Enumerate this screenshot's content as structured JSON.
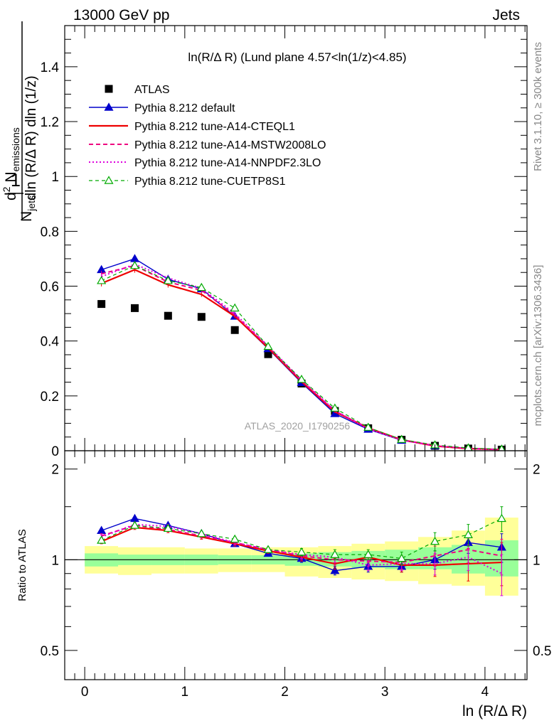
{
  "header": {
    "left": "13000 GeV pp",
    "right": "Jets"
  },
  "side_labels": {
    "rivet": "Rivet 3.1.10, ≥ 300k events",
    "mcplots": "mcplots.cern.ch [arXiv:1306.3436]"
  },
  "watermark": "ATLAS_2020_I1790256",
  "chart_data": [
    {
      "type": "scatter",
      "title": "ln(R/Δ R) (Lund plane 4.57<ln(1/z)<4.85)",
      "ylabel": "1/N_jets d²N_emissions / dln(R/ΔR) dln(1/z)",
      "ylabel_parts": {
        "frac_num": "1",
        "frac_den": "N",
        "den_sub": "jets",
        "main": "d",
        "main_sup": "2",
        "main_N": " N",
        "main_sub": "emissions",
        "line2": "dln (R/Δ R) dln (1/z)"
      },
      "xlabel": "ln (R/Δ R)",
      "xlim": [
        -0.2,
        4.42
      ],
      "ylim": [
        0,
        1.55
      ],
      "yticks": [
        0.2,
        0.4,
        0.6,
        0.8,
        1,
        1.2,
        1.4
      ],
      "ytick_labels": [
        "0",
        "0.2",
        "0.4",
        "0.6",
        "0.8",
        "1",
        "1.2",
        "1.4"
      ],
      "x": [
        0.167,
        0.5,
        0.833,
        1.167,
        1.5,
        1.833,
        2.167,
        2.5,
        2.833,
        3.167,
        3.5,
        3.833,
        4.167
      ],
      "series": [
        {
          "name": "ATLAS",
          "style": "data",
          "color": "#000000",
          "values": [
            0.535,
            0.52,
            0.492,
            0.488,
            0.44,
            0.352,
            0.245,
            0.145,
            0.082,
            0.04,
            0.018,
            0.008,
            0.004
          ]
        },
        {
          "name": "Pythia 8.212 default",
          "style": "blue-tri",
          "color": "#0000cc",
          "values": [
            0.66,
            0.7,
            0.625,
            0.59,
            0.49,
            0.372,
            0.248,
            0.135,
            0.078,
            0.038,
            0.018,
            0.009,
            0.0045
          ],
          "errors": [
            0.012,
            0.012,
            0.01,
            0.009,
            0.008,
            0.006,
            0.005,
            0.004,
            0.003,
            0.002,
            0.001,
            0.001,
            0.0008
          ]
        },
        {
          "name": "Pythia 8.212 tune-A14-CTEQL1",
          "style": "red-solid",
          "color": "#ee0000",
          "values": [
            0.61,
            0.66,
            0.605,
            0.57,
            0.49,
            0.375,
            0.252,
            0.142,
            0.083,
            0.04,
            0.017,
            0.0078,
            0.004
          ],
          "errors": [
            0.011,
            0.011,
            0.01,
            0.009,
            0.008,
            0.006,
            0.005,
            0.004,
            0.003,
            0.002,
            0.001,
            0.001,
            0.0008
          ]
        },
        {
          "name": "Pythia 8.212 tune-A14-MSTW2008LO",
          "style": "magenta-dash",
          "color": "#ee0080",
          "values": [
            0.645,
            0.675,
            0.615,
            0.585,
            0.495,
            0.38,
            0.255,
            0.145,
            0.082,
            0.04,
            0.0185,
            0.0087,
            0.0042
          ],
          "errors": [
            0.011,
            0.011,
            0.01,
            0.009,
            0.008,
            0.006,
            0.005,
            0.004,
            0.003,
            0.002,
            0.001,
            0.001,
            0.0008
          ]
        },
        {
          "name": "Pythia 8.212 tune-A14-NNPDF2.3LO",
          "style": "pink-dot",
          "color": "#dd00dd",
          "values": [
            0.635,
            0.68,
            0.63,
            0.592,
            0.5,
            0.382,
            0.258,
            0.147,
            0.079,
            0.039,
            0.0175,
            0.0083,
            0.0036
          ],
          "errors": [
            0.011,
            0.011,
            0.01,
            0.009,
            0.008,
            0.006,
            0.005,
            0.004,
            0.003,
            0.002,
            0.001,
            0.001,
            0.0008
          ]
        },
        {
          "name": "Pythia 8.212 tune-CUETP8S1",
          "style": "green-dash-tri",
          "color": "#00aa00",
          "values": [
            0.62,
            0.675,
            0.62,
            0.595,
            0.52,
            0.38,
            0.26,
            0.155,
            0.085,
            0.041,
            0.021,
            0.01,
            0.0055
          ],
          "errors": [
            0.011,
            0.011,
            0.01,
            0.009,
            0.008,
            0.006,
            0.005,
            0.004,
            0.003,
            0.002,
            0.001,
            0.001,
            0.0008
          ]
        }
      ]
    },
    {
      "type": "line",
      "ylabel": "Ratio to ATLAS",
      "xlabel": "ln (R/Δ R)",
      "xlim": [
        -0.2,
        4.42
      ],
      "ylim": [
        0.4,
        2.3
      ],
      "y_scale": "log",
      "yticks": [
        0.5,
        1,
        2
      ],
      "ytick_labels": [
        "0.5",
        "1",
        "2"
      ],
      "xticks": [
        0,
        1,
        2,
        3,
        4
      ],
      "xtick_labels": [
        "0",
        "1",
        "2",
        "3",
        "4"
      ],
      "x_bin_edges": [
        0,
        0.333,
        0.667,
        1.0,
        1.333,
        1.667,
        2.0,
        2.333,
        2.667,
        3.0,
        3.333,
        3.667,
        4.0,
        4.333
      ],
      "band_inner": {
        "color": "#99ff99",
        "lo": [
          0.95,
          0.96,
          0.96,
          0.96,
          0.965,
          0.965,
          0.955,
          0.95,
          0.94,
          0.93,
          0.93,
          0.9,
          0.88
        ],
        "hi": [
          1.05,
          1.04,
          1.04,
          1.04,
          1.035,
          1.035,
          1.05,
          1.06,
          1.07,
          1.08,
          1.1,
          1.12,
          1.16
        ]
      },
      "band_outer": {
        "color": "#ffff99",
        "lo": [
          0.9,
          0.89,
          0.9,
          0.9,
          0.91,
          0.91,
          0.88,
          0.87,
          0.86,
          0.85,
          0.83,
          0.82,
          0.76
        ],
        "hi": [
          1.11,
          1.1,
          1.1,
          1.09,
          1.09,
          1.1,
          1.1,
          1.11,
          1.13,
          1.15,
          1.19,
          1.25,
          1.38
        ]
      },
      "x": [
        0.167,
        0.5,
        0.833,
        1.167,
        1.5,
        1.833,
        2.167,
        2.5,
        2.833,
        3.167,
        3.5,
        3.833,
        4.167
      ],
      "series": [
        {
          "name": "Pythia 8.212 default",
          "style": "blue-tri",
          "color": "#0000cc",
          "values": [
            1.25,
            1.37,
            1.3,
            1.22,
            1.13,
            1.05,
            1.01,
            0.92,
            0.95,
            0.95,
            1.0,
            1.14,
            1.1
          ],
          "errors": [
            0.02,
            0.02,
            0.02,
            0.02,
            0.02,
            0.02,
            0.03,
            0.03,
            0.04,
            0.04,
            0.07,
            0.09,
            0.12
          ]
        },
        {
          "name": "Pythia 8.212 tune-A14-CTEQL1",
          "style": "red-solid",
          "color": "#ee0000",
          "values": [
            1.15,
            1.28,
            1.25,
            1.19,
            1.13,
            1.07,
            1.02,
            0.97,
            1.02,
            0.96,
            0.96,
            0.97,
            0.98
          ],
          "errors": [
            0.02,
            0.02,
            0.02,
            0.02,
            0.02,
            0.02,
            0.03,
            0.04,
            0.04,
            0.05,
            0.08,
            0.12,
            0.16
          ]
        },
        {
          "name": "Pythia 8.212 tune-A14-MSTW2008LO",
          "style": "magenta-dash",
          "color": "#ee0080",
          "values": [
            1.2,
            1.3,
            1.26,
            1.2,
            1.14,
            1.08,
            1.03,
            1.0,
            0.99,
            0.98,
            1.03,
            1.08,
            1.03
          ],
          "errors": [
            0.02,
            0.02,
            0.02,
            0.02,
            0.02,
            0.02,
            0.03,
            0.04,
            0.04,
            0.05,
            0.08,
            0.1,
            0.14
          ]
        },
        {
          "name": "Pythia 8.212 tune-A14-NNPDF2.3LO",
          "style": "pink-dot",
          "color": "#dd00dd",
          "values": [
            1.19,
            1.31,
            1.29,
            1.22,
            1.14,
            1.08,
            1.04,
            1.02,
            0.96,
            0.97,
            0.97,
            1.02,
            0.9
          ],
          "errors": [
            0.02,
            0.02,
            0.02,
            0.02,
            0.02,
            0.02,
            0.03,
            0.04,
            0.04,
            0.05,
            0.08,
            0.1,
            0.14
          ]
        },
        {
          "name": "Pythia 8.212 tune-CUETP8S1",
          "style": "green-dash-tri",
          "color": "#00aa00",
          "values": [
            1.16,
            1.3,
            1.27,
            1.22,
            1.17,
            1.08,
            1.06,
            1.04,
            1.04,
            1.01,
            1.15,
            1.21,
            1.37
          ],
          "errors": [
            0.02,
            0.02,
            0.02,
            0.02,
            0.02,
            0.02,
            0.03,
            0.04,
            0.04,
            0.05,
            0.08,
            0.1,
            0.13
          ]
        }
      ]
    }
  ]
}
